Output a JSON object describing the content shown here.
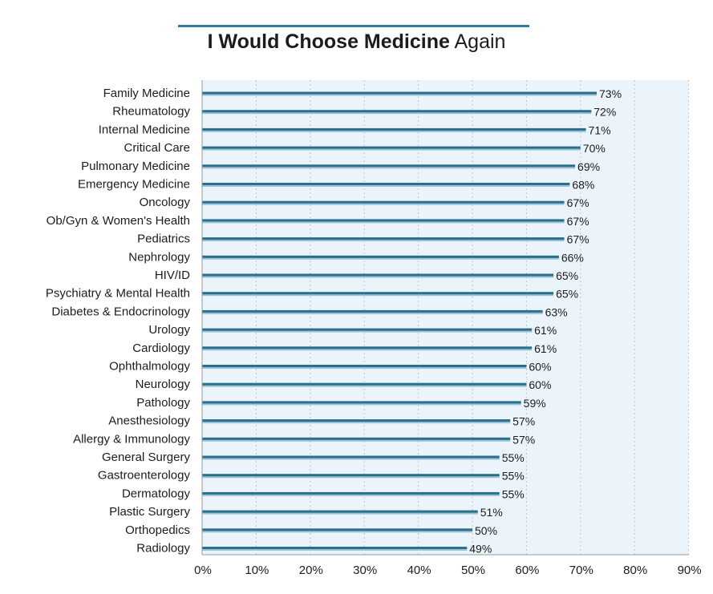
{
  "chart_data": {
    "type": "bar",
    "orientation": "horizontal",
    "title_bold": "I Would Choose Medicine",
    "title_rest": "Again",
    "categories": [
      "Family Medicine",
      "Rheumatology",
      "Internal Medicine",
      "Critical Care",
      "Pulmonary Medicine",
      "Emergency Medicine",
      "Oncology",
      "Ob/Gyn & Women's Health",
      "Pediatrics",
      "Nephrology",
      "HIV/ID",
      "Psychiatry & Mental Health",
      "Diabetes & Endocrinology",
      "Urology",
      "Cardiology",
      "Ophthalmology",
      "Neurology",
      "Pathology",
      "Anesthesiology",
      "Allergy & Immunology",
      "General Surgery",
      "Gastroenterology",
      "Dermatology",
      "Plastic Surgery",
      "Orthopedics",
      "Radiology"
    ],
    "values": [
      73,
      72,
      71,
      70,
      69,
      68,
      67,
      67,
      67,
      66,
      65,
      65,
      63,
      61,
      61,
      60,
      60,
      59,
      57,
      57,
      55,
      55,
      55,
      51,
      50,
      49
    ],
    "value_labels": [
      "73%",
      "72%",
      "71%",
      "70%",
      "69%",
      "68%",
      "67%",
      "67%",
      "67%",
      "66%",
      "65%",
      "65%",
      "63%",
      "61%",
      "61%",
      "60%",
      "60%",
      "59%",
      "57%",
      "57%",
      "55%",
      "55%",
      "55%",
      "51%",
      "50%",
      "49%"
    ],
    "xlim": [
      0,
      90
    ],
    "xticks": [
      0,
      10,
      20,
      30,
      40,
      50,
      60,
      70,
      80,
      90
    ],
    "xtick_labels": [
      "0%",
      "10%",
      "20%",
      "30%",
      "40%",
      "50%",
      "60%",
      "70%",
      "80%",
      "90%"
    ],
    "grid": true,
    "colors": {
      "bar": "#2a6f8d",
      "bar_shadow": "#9cc2d4",
      "plot_bg": "#eaf4fa",
      "grid": "#b9c7cf",
      "title_rule": "#2e7fa6"
    }
  }
}
